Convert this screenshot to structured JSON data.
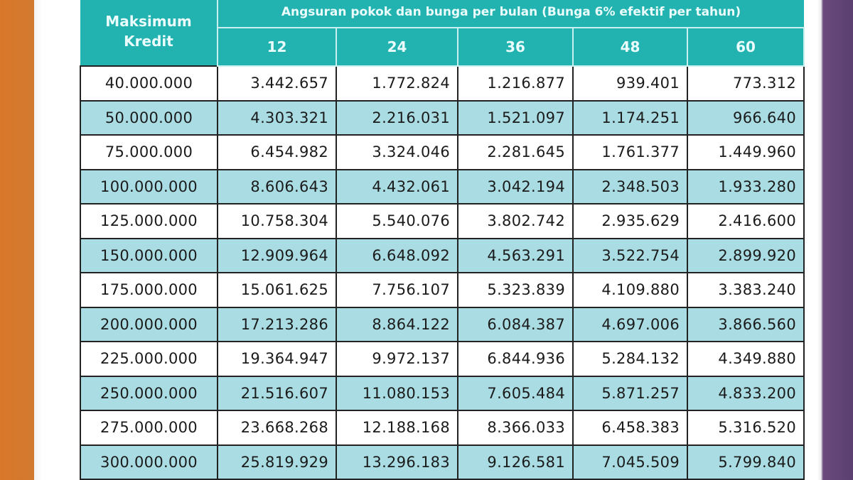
{
  "table": {
    "header_first": "Maksimum Kredit",
    "header_group": "Angsuran pokok dan bunga per bulan (Bunga 6% efektif per tahun)",
    "terms": [
      "12",
      "24",
      "36",
      "48",
      "60"
    ],
    "rows": [
      [
        "40.000.000",
        "3.442.657",
        "1.772.824",
        "1.216.877",
        "939.401",
        "773.312"
      ],
      [
        "50.000.000",
        "4.303.321",
        "2.216.031",
        "1.521.097",
        "1.174.251",
        "966.640"
      ],
      [
        "75.000.000",
        "6.454.982",
        "3.324.046",
        "2.281.645",
        "1.761.377",
        "1.449.960"
      ],
      [
        "100.000.000",
        "8.606.643",
        "4.432.061",
        "3.042.194",
        "2.348.503",
        "1.933.280"
      ],
      [
        "125.000.000",
        "10.758.304",
        "5.540.076",
        "3.802.742",
        "2.935.629",
        "2.416.600"
      ],
      [
        "150.000.000",
        "12.909.964",
        "6.648.092",
        "4.563.291",
        "3.522.754",
        "2.899.920"
      ],
      [
        "175.000.000",
        "15.061.625",
        "7.756.107",
        "5.323.839",
        "4.109.880",
        "3.383.240"
      ],
      [
        "200.000.000",
        "17.213.286",
        "8.864.122",
        "6.084.387",
        "4.697.006",
        "3.866.560"
      ],
      [
        "225.000.000",
        "19.364.947",
        "9.972.137",
        "6.844.936",
        "5.284.132",
        "4.349.880"
      ],
      [
        "250.000.000",
        "21.516.607",
        "11.080.153",
        "7.605.484",
        "5.871.257",
        "4.833.200"
      ],
      [
        "275.000.000",
        "23.668.268",
        "12.188.168",
        "8.366.033",
        "6.458.383",
        "5.316.520"
      ],
      [
        "300.000.000",
        "25.819.929",
        "13.296.183",
        "9.126.581",
        "7.045.509",
        "5.799.840"
      ]
    ]
  },
  "colors": {
    "header": "#22b3b1",
    "alt_row": "#a9dde3",
    "left_bg": "#d9772a",
    "right_bg": "#5a3f70"
  }
}
